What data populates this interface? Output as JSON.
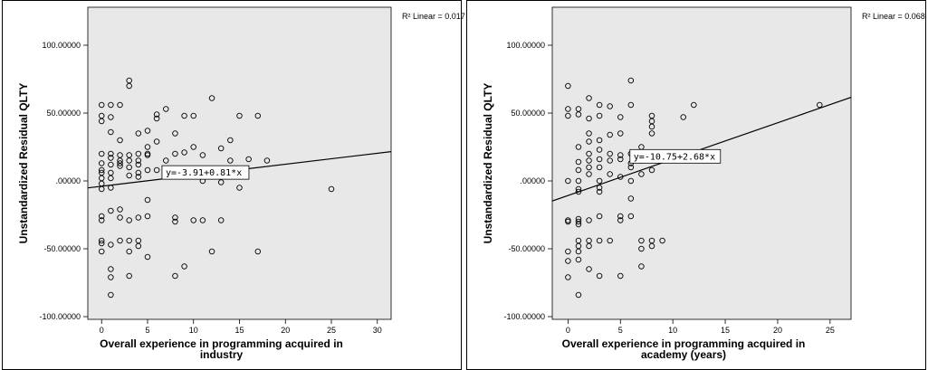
{
  "chart_data": [
    {
      "type": "scatter",
      "ylabel": "Unstandardized Residual QLTY",
      "xlabel_lines": [
        "Overall experience in programming acquired in",
        "industry"
      ],
      "r2_text": "R² Linear = 0.017",
      "equation": "y=-3.91+0.81*x",
      "fit": {
        "intercept": -3.91,
        "slope": 0.81
      },
      "xlim": [
        -1.5,
        31.5
      ],
      "ylim": [
        -102,
        128
      ],
      "xticks": [
        0,
        5,
        10,
        15,
        20,
        25,
        30
      ],
      "yticks": [
        -100,
        -50,
        0,
        50,
        100
      ],
      "ytick_labels": [
        "-100.00000",
        "-50.00000",
        ".00000",
        "50.00000",
        "100.00000"
      ],
      "points": [
        [
          0,
          56
        ],
        [
          0,
          48
        ],
        [
          0,
          44
        ],
        [
          0,
          20
        ],
        [
          0,
          13
        ],
        [
          0,
          8
        ],
        [
          0,
          6
        ],
        [
          0,
          2
        ],
        [
          0,
          -2
        ],
        [
          0,
          -6
        ],
        [
          0,
          -26
        ],
        [
          0,
          -29
        ],
        [
          0,
          -44
        ],
        [
          0,
          -46
        ],
        [
          0,
          -52
        ],
        [
          1,
          56
        ],
        [
          1,
          47
        ],
        [
          1,
          36
        ],
        [
          1,
          20
        ],
        [
          1,
          17
        ],
        [
          1,
          12
        ],
        [
          1,
          6
        ],
        [
          1,
          2
        ],
        [
          1,
          -5
        ],
        [
          1,
          -22
        ],
        [
          1,
          -47
        ],
        [
          1,
          -65
        ],
        [
          1,
          -71
        ],
        [
          1,
          -84
        ],
        [
          2,
          56
        ],
        [
          2,
          30
        ],
        [
          2,
          19
        ],
        [
          2,
          15
        ],
        [
          2,
          13
        ],
        [
          2,
          11
        ],
        [
          2,
          -21
        ],
        [
          2,
          -27
        ],
        [
          2,
          -44
        ],
        [
          3,
          74
        ],
        [
          3,
          70
        ],
        [
          3,
          19
        ],
        [
          3,
          15
        ],
        [
          3,
          10
        ],
        [
          3,
          4
        ],
        [
          3,
          -29
        ],
        [
          3,
          -44
        ],
        [
          3,
          -52
        ],
        [
          3,
          -70
        ],
        [
          4,
          35
        ],
        [
          4,
          20
        ],
        [
          4,
          15
        ],
        [
          4,
          12
        ],
        [
          4,
          6
        ],
        [
          4,
          3
        ],
        [
          4,
          -27
        ],
        [
          4,
          -44
        ],
        [
          4,
          -48
        ],
        [
          5,
          37
        ],
        [
          5,
          25
        ],
        [
          5,
          20
        ],
        [
          5,
          19
        ],
        [
          5,
          8
        ],
        [
          5,
          -14
        ],
        [
          5,
          -26
        ],
        [
          5,
          -56
        ],
        [
          6,
          46
        ],
        [
          6,
          49
        ],
        [
          6,
          29
        ],
        [
          6,
          8
        ],
        [
          7,
          53
        ],
        [
          7,
          15
        ],
        [
          8,
          35
        ],
        [
          8,
          20
        ],
        [
          8,
          -27
        ],
        [
          8,
          -30
        ],
        [
          8,
          -70
        ],
        [
          9,
          48
        ],
        [
          9,
          21
        ],
        [
          9,
          -63
        ],
        [
          10,
          48
        ],
        [
          10,
          25
        ],
        [
          10,
          -29
        ],
        [
          11,
          19
        ],
        [
          11,
          0
        ],
        [
          11,
          -29
        ],
        [
          12,
          61
        ],
        [
          12,
          5
        ],
        [
          12,
          -52
        ],
        [
          13,
          24
        ],
        [
          13,
          -1
        ],
        [
          13,
          -29
        ],
        [
          14,
          30
        ],
        [
          14,
          15
        ],
        [
          15,
          48
        ],
        [
          15,
          -5
        ],
        [
          16,
          16
        ],
        [
          17,
          48
        ],
        [
          17,
          -52
        ],
        [
          18,
          15
        ],
        [
          25,
          -6
        ]
      ]
    },
    {
      "type": "scatter",
      "ylabel": "Unstandardized Residual QLTY",
      "xlabel_lines": [
        "Overall experience in programming acquired in",
        "academy (years)"
      ],
      "r2_text": "R² Linear = 0.068",
      "equation": "y=-10.75+2.68*x",
      "fit": {
        "intercept": -10.75,
        "slope": 2.68
      },
      "xlim": [
        -1.5,
        27
      ],
      "ylim": [
        -102,
        128
      ],
      "xticks": [
        0,
        5,
        10,
        15,
        20,
        25
      ],
      "yticks": [
        -100,
        -50,
        0,
        50,
        100
      ],
      "ytick_labels": [
        "-100.00000",
        "-50.00000",
        ".00000",
        "50.00000",
        "100.00000"
      ],
      "points": [
        [
          0,
          70
        ],
        [
          0,
          53
        ],
        [
          0,
          48
        ],
        [
          0,
          0
        ],
        [
          0,
          -29
        ],
        [
          0,
          -30
        ],
        [
          0,
          -52
        ],
        [
          0,
          -59
        ],
        [
          0,
          -71
        ],
        [
          1,
          53
        ],
        [
          1,
          49
        ],
        [
          1,
          25
        ],
        [
          1,
          14
        ],
        [
          1,
          8
        ],
        [
          1,
          0
        ],
        [
          1,
          -6
        ],
        [
          1,
          -8
        ],
        [
          1,
          -28
        ],
        [
          1,
          -30
        ],
        [
          1,
          -32
        ],
        [
          1,
          -44
        ],
        [
          1,
          -48
        ],
        [
          1,
          -52
        ],
        [
          1,
          -58
        ],
        [
          1,
          -84
        ],
        [
          2,
          61
        ],
        [
          2,
          46
        ],
        [
          2,
          35
        ],
        [
          2,
          29
        ],
        [
          2,
          20
        ],
        [
          2,
          15
        ],
        [
          2,
          10
        ],
        [
          2,
          5
        ],
        [
          2,
          -29
        ],
        [
          2,
          -44
        ],
        [
          2,
          -48
        ],
        [
          2,
          -65
        ],
        [
          3,
          56
        ],
        [
          3,
          48
        ],
        [
          3,
          30
        ],
        [
          3,
          23
        ],
        [
          3,
          16
        ],
        [
          3,
          10
        ],
        [
          3,
          0
        ],
        [
          3,
          -5
        ],
        [
          3,
          -8
        ],
        [
          3,
          -26
        ],
        [
          3,
          -44
        ],
        [
          3,
          -70
        ],
        [
          4,
          55
        ],
        [
          4,
          34
        ],
        [
          4,
          20
        ],
        [
          4,
          15
        ],
        [
          4,
          5
        ],
        [
          4,
          -44
        ],
        [
          5,
          47
        ],
        [
          5,
          35
        ],
        [
          5,
          19
        ],
        [
          5,
          16
        ],
        [
          5,
          3
        ],
        [
          5,
          -26
        ],
        [
          5,
          -29
        ],
        [
          5,
          -70
        ],
        [
          6,
          74
        ],
        [
          6,
          56
        ],
        [
          6,
          20
        ],
        [
          6,
          13
        ],
        [
          6,
          10
        ],
        [
          6,
          0
        ],
        [
          6,
          -13
        ],
        [
          6,
          -26
        ],
        [
          7,
          25
        ],
        [
          7,
          15
        ],
        [
          7,
          5
        ],
        [
          7,
          -44
        ],
        [
          7,
          -50
        ],
        [
          7,
          -63
        ],
        [
          8,
          48
        ],
        [
          8,
          44
        ],
        [
          8,
          40
        ],
        [
          8,
          35
        ],
        [
          8,
          20
        ],
        [
          8,
          8
        ],
        [
          8,
          -44
        ],
        [
          8,
          -48
        ],
        [
          9,
          -44
        ],
        [
          11,
          47
        ],
        [
          12,
          56
        ],
        [
          24,
          56
        ]
      ]
    }
  ]
}
